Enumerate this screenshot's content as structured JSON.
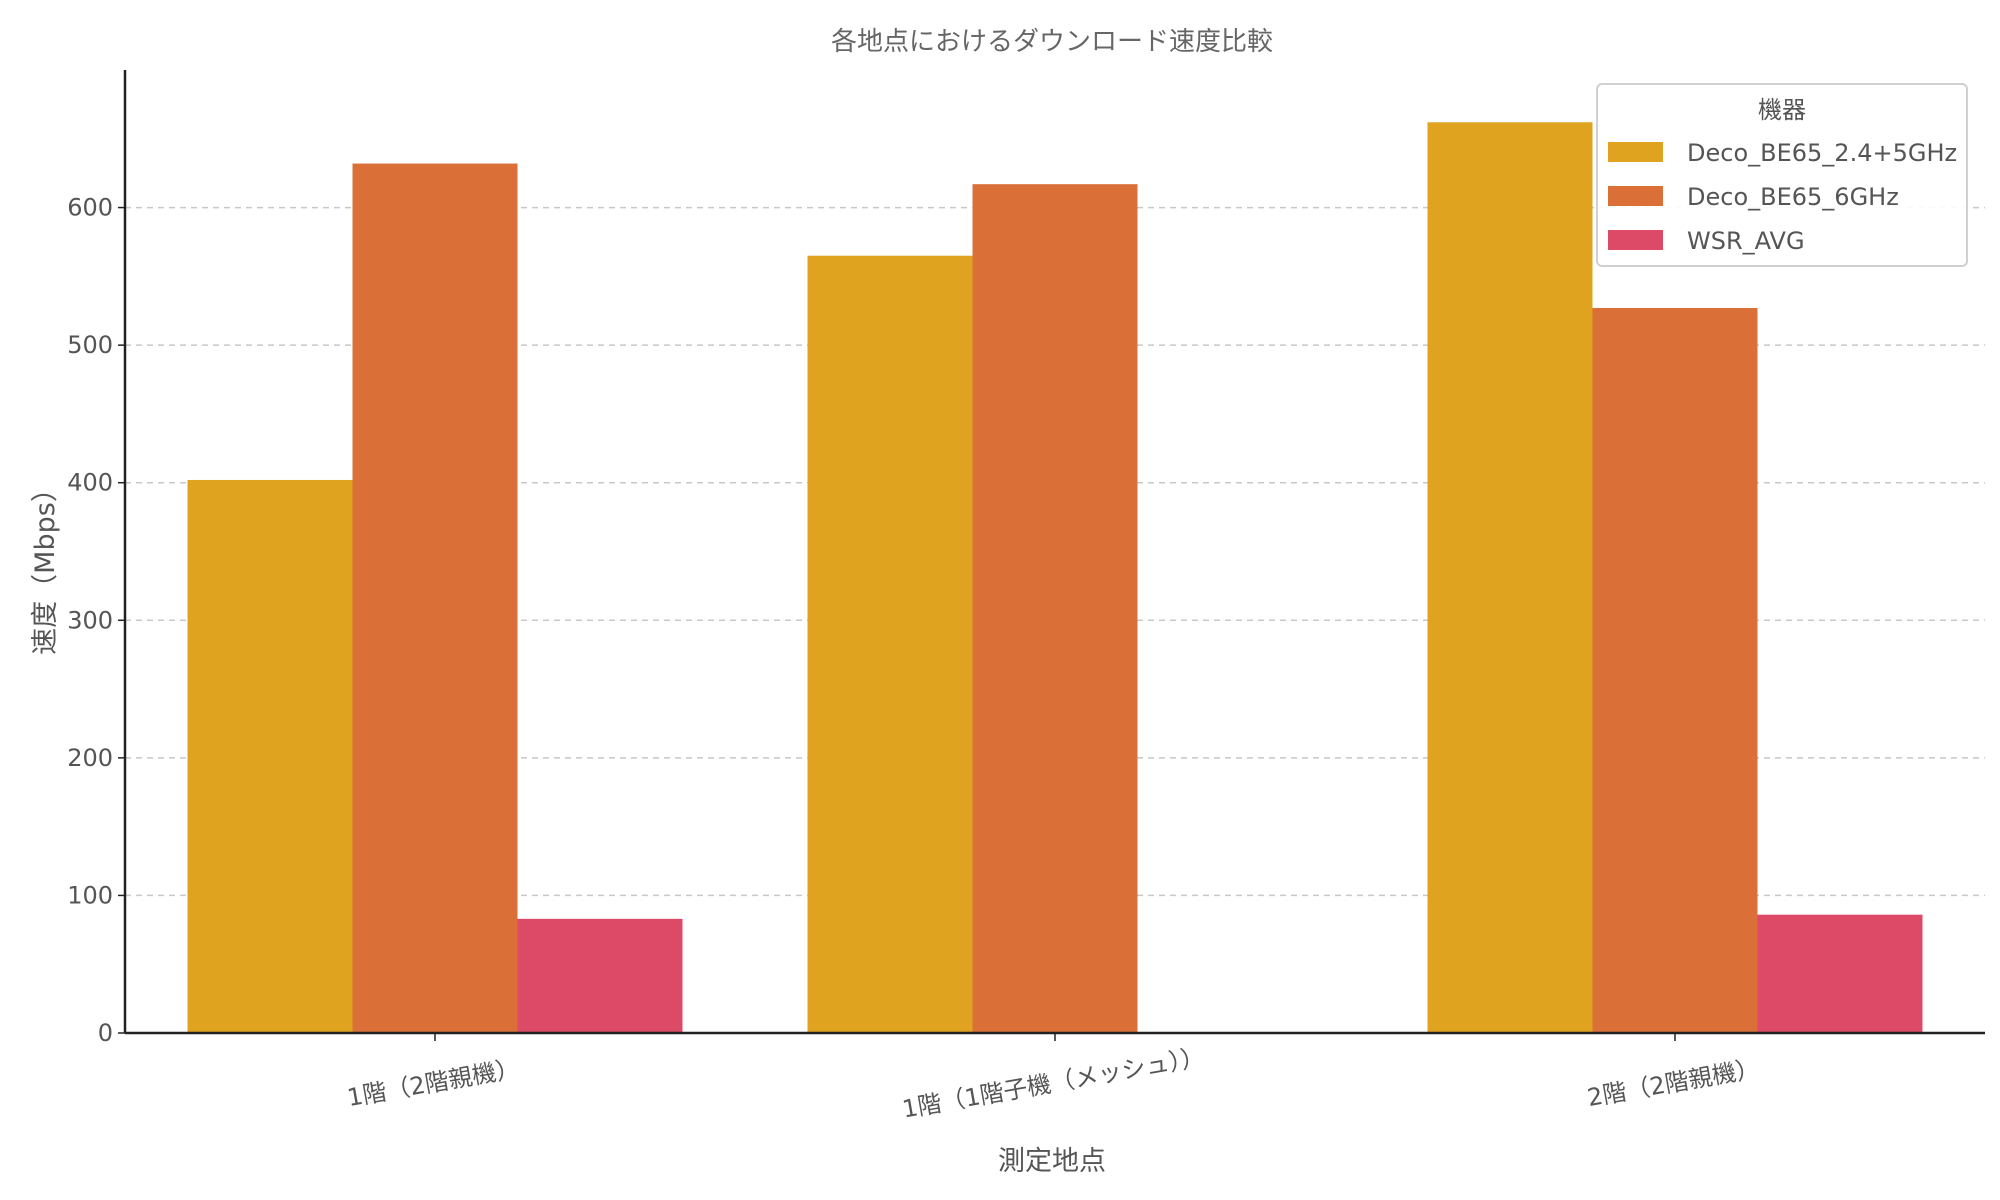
{
  "chart_data": {
    "type": "bar",
    "title": "各地点におけるダウンロード速度比較",
    "xlabel": "測定地点",
    "ylabel": "速度（Mbps）",
    "categories": [
      "1階（2階親機）",
      "1階（1階子機（メッシュ））",
      "2階（2階親機）"
    ],
    "series": [
      {
        "name": "Deco_BE65_2.4+5GHz",
        "color": "#DFA320",
        "values": [
          402,
          565,
          662
        ]
      },
      {
        "name": "Deco_BE65_6GHz",
        "color": "#DA6F38",
        "values": [
          632,
          617,
          527
        ]
      },
      {
        "name": "WSR_AVG",
        "color": "#DD4A67",
        "values": [
          83,
          null,
          86
        ]
      }
    ],
    "ylim": [
      0,
      700
    ],
    "yticks": [
      0,
      100,
      200,
      300,
      400,
      500,
      600
    ],
    "grid": true,
    "legend": {
      "title": "機器",
      "position": "top-right"
    }
  }
}
